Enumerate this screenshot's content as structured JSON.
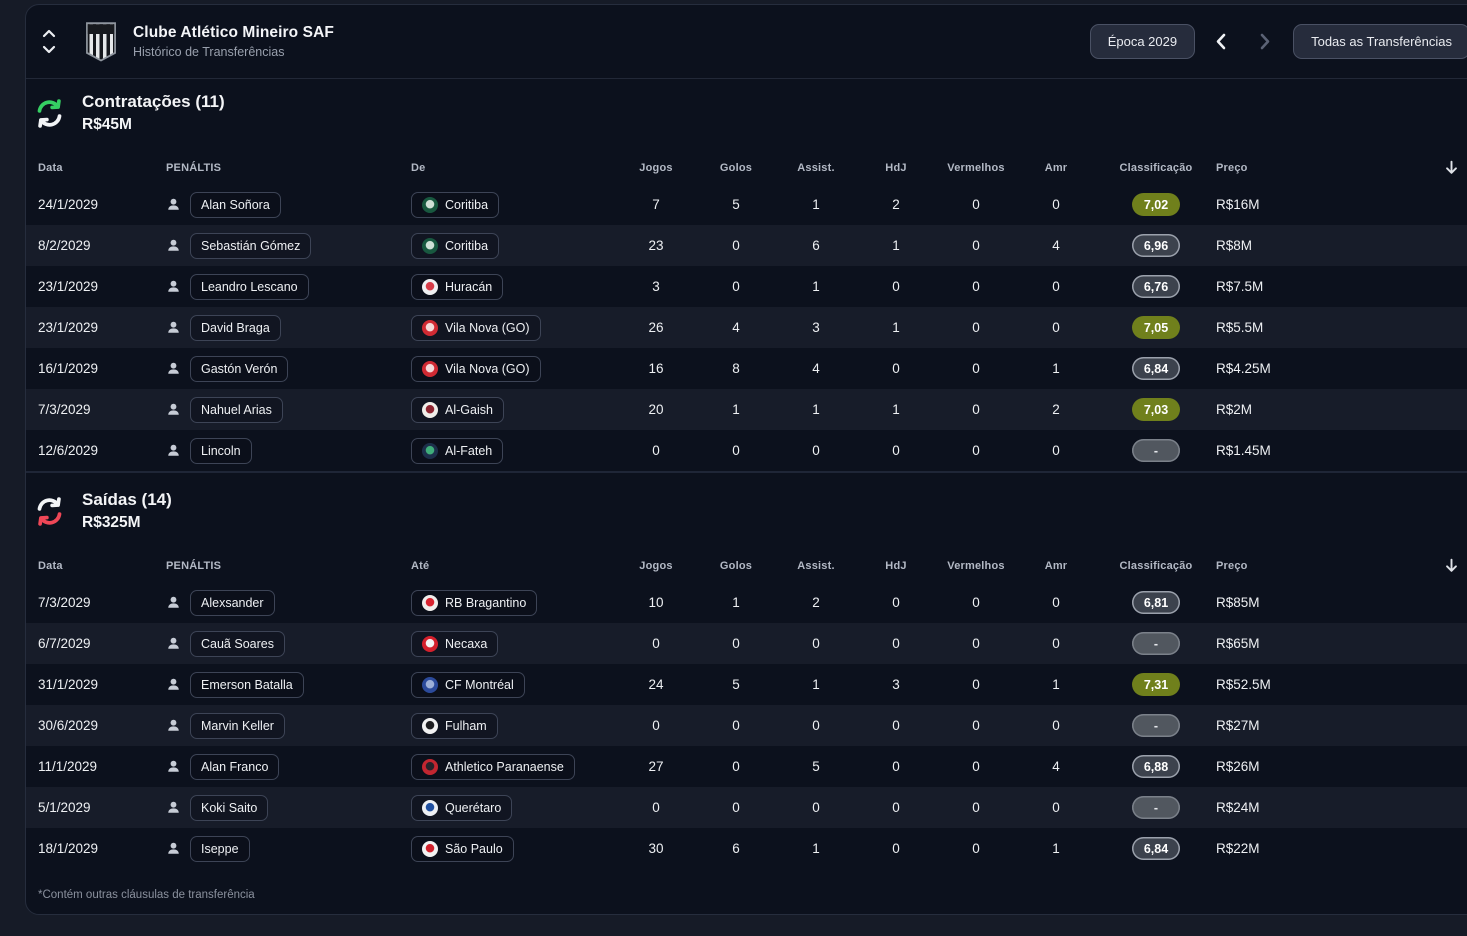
{
  "header": {
    "club_name": "Clube Atlético Mineiro SAF",
    "screen_title": "Histórico de Transferências",
    "season_button": "Época 2029",
    "filter_button": "Todas as Transferências"
  },
  "icons": {
    "collapse": "chevron-up-down",
    "season_prev": "chevron-left",
    "season_next": "chevron-right",
    "transfers_in": "cycle-arrows-green",
    "transfers_out": "cycle-arrows-red",
    "player": "person-bust",
    "sort": "arrow-down"
  },
  "colors": {
    "accent_in": "#35cf63",
    "accent_out": "#ef4757",
    "rating_good": "#70801c",
    "rating_neutral": "#3c424d"
  },
  "footnote": "*Contém outras cláusulas de transferência",
  "sections": [
    {
      "title": "Contratações (11)",
      "total": "R$45M",
      "accent_top": "#35cf63",
      "accent_bottom": "#f2f4f6",
      "columns": [
        "Data",
        "PENÁLTIS",
        "De",
        "Jogos",
        "Golos",
        "Assist.",
        "HdJ",
        "Vermelhos",
        "Amr",
        "Classificação",
        "Preço"
      ],
      "rows": [
        {
          "date": "24/1/2029",
          "player": "Alan Soñora",
          "club": "Coritiba",
          "club_colors": {
            "primary": "#18583f",
            "secondary": "#cfe0d6"
          },
          "games": "7",
          "goals": "5",
          "assists": "1",
          "motm": "2",
          "reds": "0",
          "yellows": "0",
          "rating": "7,02",
          "rating_style": "good",
          "fee": "R$16M"
        },
        {
          "date": "8/2/2029",
          "player": "Sebastián Gómez",
          "club": "Coritiba",
          "club_colors": {
            "primary": "#18583f",
            "secondary": "#cfe0d6"
          },
          "games": "23",
          "goals": "0",
          "assists": "6",
          "motm": "1",
          "reds": "0",
          "yellows": "4",
          "rating": "6,96",
          "rating_style": "ok",
          "fee": "R$8M"
        },
        {
          "date": "23/1/2029",
          "player": "Leandro Lescano",
          "club": "Huracán",
          "club_colors": {
            "primary": "#eff0f2",
            "secondary": "#d63b47"
          },
          "games": "3",
          "goals": "0",
          "assists": "1",
          "motm": "0",
          "reds": "0",
          "yellows": "0",
          "rating": "6,76",
          "rating_style": "ok",
          "fee": "R$7.5M"
        },
        {
          "date": "23/1/2029",
          "player": "David Braga",
          "club": "Vila Nova (GO)",
          "club_colors": {
            "primary": "#d02a33",
            "secondary": "#f4d9d9"
          },
          "games": "26",
          "goals": "4",
          "assists": "3",
          "motm": "1",
          "reds": "0",
          "yellows": "0",
          "rating": "7,05",
          "rating_style": "good",
          "fee": "R$5.5M"
        },
        {
          "date": "16/1/2029",
          "player": "Gastón Verón",
          "club": "Vila Nova (GO)",
          "club_colors": {
            "primary": "#d02a33",
            "secondary": "#f4d9d9"
          },
          "games": "16",
          "goals": "8",
          "assists": "4",
          "motm": "0",
          "reds": "0",
          "yellows": "1",
          "rating": "6,84",
          "rating_style": "ok",
          "fee": "R$4.25M"
        },
        {
          "date": "7/3/2029",
          "player": "Nahuel Arias",
          "club": "Al-Gaish",
          "club_colors": {
            "primary": "#f0eee9",
            "secondary": "#8e2430"
          },
          "games": "20",
          "goals": "1",
          "assists": "1",
          "motm": "1",
          "reds": "0",
          "yellows": "2",
          "rating": "7,03",
          "rating_style": "good",
          "fee": "R$2M"
        },
        {
          "date": "12/6/2029",
          "player": "Lincoln",
          "club": "Al-Fateh",
          "club_colors": {
            "primary": "#1c2f4a",
            "secondary": "#3fae7a"
          },
          "games": "0",
          "goals": "0",
          "assists": "0",
          "motm": "0",
          "reds": "0",
          "yellows": "0",
          "rating": "-",
          "rating_style": "none",
          "fee": "R$1.45M"
        }
      ]
    },
    {
      "title": "Saídas (14)",
      "total": "R$325M",
      "accent_top": "#f2f4f6",
      "accent_bottom": "#ef4757",
      "columns": [
        "Data",
        "PENÁLTIS",
        "Até",
        "Jogos",
        "Golos",
        "Assist.",
        "HdJ",
        "Vermelhos",
        "Amr",
        "Classificação",
        "Preço"
      ],
      "rows": [
        {
          "date": "7/3/2029",
          "player": "Alexsander",
          "club": "RB Bragantino",
          "club_colors": {
            "primary": "#f0eeec",
            "secondary": "#d8232f"
          },
          "games": "10",
          "goals": "1",
          "assists": "2",
          "motm": "0",
          "reds": "0",
          "yellows": "0",
          "rating": "6,81",
          "rating_style": "ok",
          "fee": "R$85M"
        },
        {
          "date": "6/7/2029",
          "player": "Cauã Soares",
          "club": "Necaxa",
          "club_colors": {
            "primary": "#d5202c",
            "secondary": "#f4f4f4"
          },
          "games": "0",
          "goals": "0",
          "assists": "0",
          "motm": "0",
          "reds": "0",
          "yellows": "0",
          "rating": "-",
          "rating_style": "none",
          "fee": "R$65M"
        },
        {
          "date": "31/1/2029",
          "player": "Emerson Batalla",
          "club": "CF Montréal",
          "club_colors": {
            "primary": "#2b4a9b",
            "secondary": "#9db0d8"
          },
          "games": "24",
          "goals": "5",
          "assists": "1",
          "motm": "3",
          "reds": "0",
          "yellows": "1",
          "rating": "7,31",
          "rating_style": "good",
          "fee": "R$52.5M"
        },
        {
          "date": "30/6/2029",
          "player": "Marvin Keller",
          "club": "Fulham",
          "club_colors": {
            "primary": "#f2f2f2",
            "secondary": "#1d1d20"
          },
          "games": "0",
          "goals": "0",
          "assists": "0",
          "motm": "0",
          "reds": "0",
          "yellows": "0",
          "rating": "-",
          "rating_style": "none",
          "fee": "R$27M"
        },
        {
          "date": "11/1/2029",
          "player": "Alan Franco",
          "club": "Athletico Paranaense",
          "club_colors": {
            "primary": "#c22630",
            "secondary": "#26222a"
          },
          "games": "27",
          "goals": "0",
          "assists": "5",
          "motm": "0",
          "reds": "0",
          "yellows": "4",
          "rating": "6,88",
          "rating_style": "ok",
          "fee": "R$26M"
        },
        {
          "date": "5/1/2029",
          "player": "Koki Saito",
          "club": "Querétaro",
          "club_colors": {
            "primary": "#eef0f4",
            "secondary": "#1f4fa0"
          },
          "games": "0",
          "goals": "0",
          "assists": "0",
          "motm": "0",
          "reds": "0",
          "yellows": "0",
          "rating": "-",
          "rating_style": "none",
          "fee": "R$24M"
        },
        {
          "date": "18/1/2029",
          "player": "Iseppe",
          "club": "São Paulo",
          "club_colors": {
            "primary": "#f2f2f2",
            "secondary": "#d0202b"
          },
          "games": "30",
          "goals": "6",
          "assists": "1",
          "motm": "0",
          "reds": "0",
          "yellows": "1",
          "rating": "6,84",
          "rating_style": "ok",
          "fee": "R$22M"
        }
      ]
    }
  ]
}
